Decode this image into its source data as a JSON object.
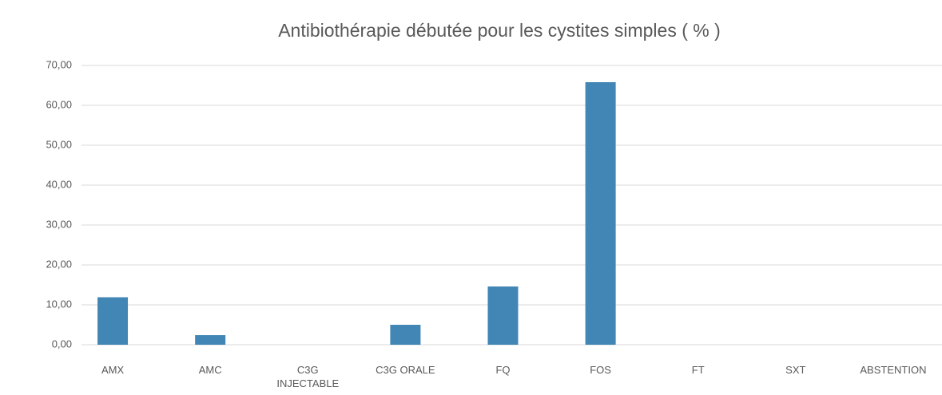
{
  "chart_data": {
    "type": "bar",
    "title": "Antibiothérapie débutée pour les cystites simples ( % )",
    "categories": [
      "AMX",
      "AMC",
      "C3G INJECTABLE",
      "C3G ORALE",
      "FQ",
      "FOS",
      "FT",
      "SXT",
      "ABSTENTION"
    ],
    "values": [
      11.9,
      2.4,
      0,
      5.0,
      14.6,
      65.8,
      0,
      0,
      0
    ],
    "color": "#4186b4",
    "ylim": [
      0,
      70
    ],
    "yticks": [
      {
        "value": 0,
        "label": "0,00"
      },
      {
        "value": 10,
        "label": "10,00"
      },
      {
        "value": 20,
        "label": "20,00"
      },
      {
        "value": 30,
        "label": "30,00"
      },
      {
        "value": 40,
        "label": "40,00"
      },
      {
        "value": 50,
        "label": "50,00"
      },
      {
        "value": 60,
        "label": "60,00"
      },
      {
        "value": 70,
        "label": "70,00"
      }
    ],
    "grid": true
  }
}
